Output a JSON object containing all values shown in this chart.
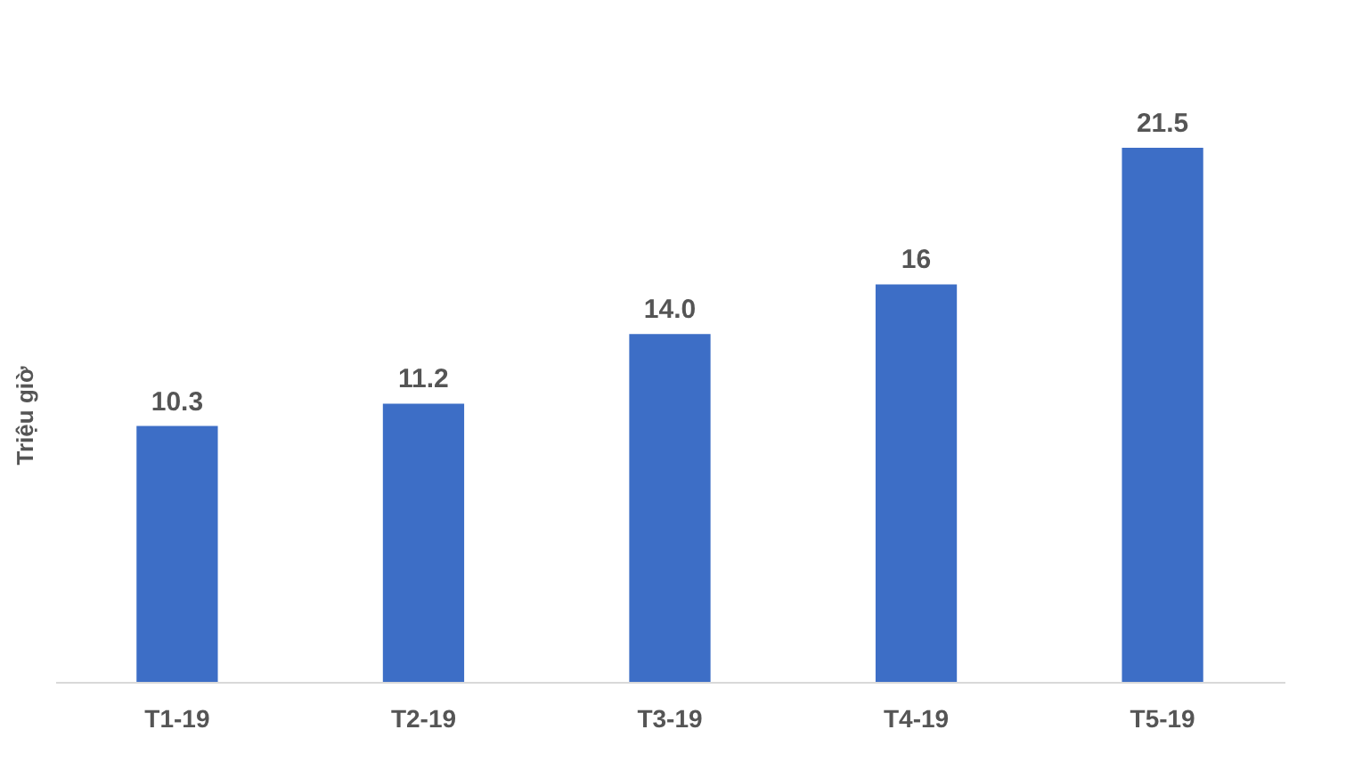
{
  "chart_data": {
    "type": "bar",
    "ylabel": "Triệu giờ",
    "categories": [
      "T1-19",
      "T2-19",
      "T3-19",
      "T4-19",
      "T5-19"
    ],
    "values": [
      10.3,
      11.2,
      14.0,
      16,
      21.5
    ],
    "value_labels": [
      "10.3",
      "11.2",
      "14.0",
      "16",
      "21.5"
    ],
    "color": "#3d6ec6",
    "grid": false
  }
}
